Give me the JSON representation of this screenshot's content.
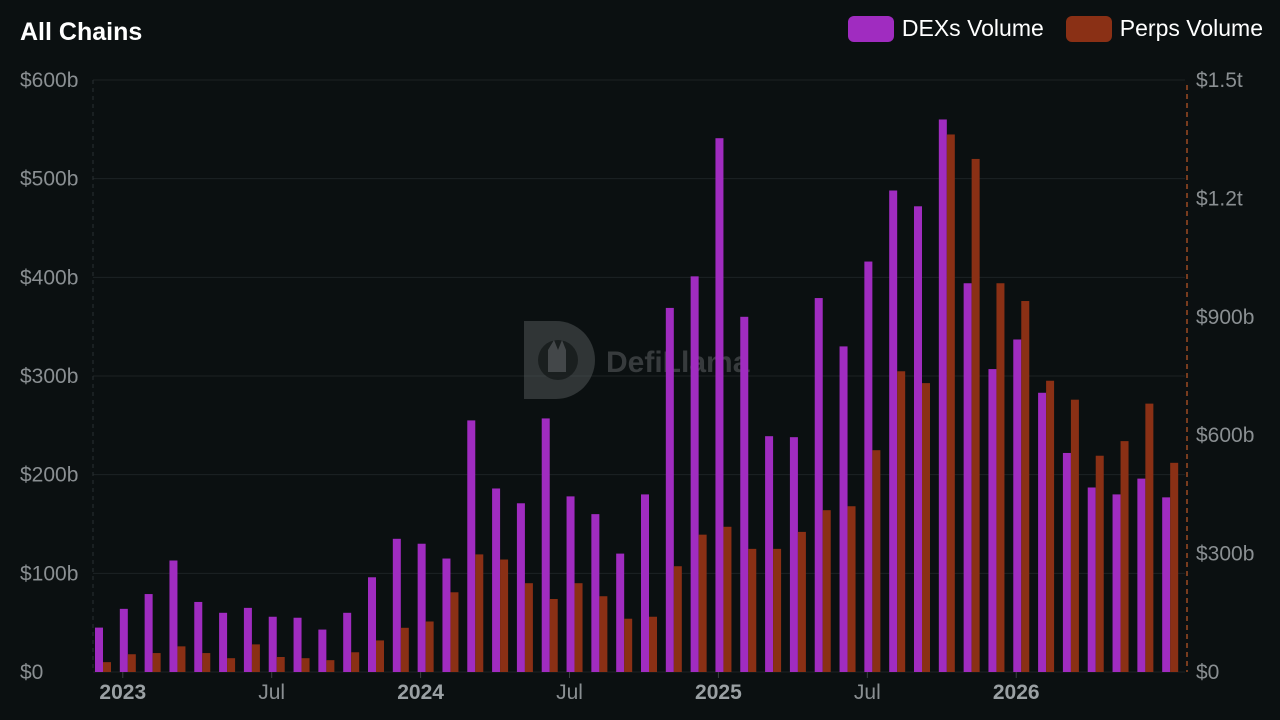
{
  "header": {
    "title": "All Chains"
  },
  "watermark": {
    "text": "DefiLlama"
  },
  "colors": {
    "background": "#0b1011",
    "dex": "#a02cc0",
    "perps": "#8a3015",
    "grid": "#1c2224",
    "axis_right": "#9c4a22"
  },
  "chart_data": {
    "type": "bar",
    "title": "All Chains",
    "series": [
      {
        "name": "DEXs Volume",
        "axis": "left",
        "color": "#a02cc0",
        "values": [
          45,
          64,
          79,
          113,
          71,
          60,
          65,
          56,
          55,
          43,
          60,
          96,
          135,
          130,
          115,
          255,
          186,
          171,
          257,
          178,
          160,
          120,
          180,
          369,
          401,
          541,
          360,
          239,
          238,
          379,
          330,
          416,
          488,
          472,
          560,
          394,
          307,
          337,
          283,
          222,
          187,
          180,
          196,
          177
        ]
      },
      {
        "name": "Perps Volume",
        "axis": "right",
        "color": "#8a3015",
        "values": [
          25,
          45,
          48,
          65,
          48,
          35,
          70,
          38,
          35,
          30,
          50,
          80,
          112,
          128,
          202,
          298,
          285,
          225,
          185,
          225,
          192,
          135,
          140,
          268,
          348,
          368,
          312,
          312,
          355,
          410,
          420,
          562,
          762,
          732,
          1362,
          1300,
          985,
          940,
          738,
          690,
          548,
          585,
          680,
          530
        ]
      }
    ],
    "x_ticks": [
      {
        "label": "2023",
        "index": 1.2,
        "bold": true
      },
      {
        "label": "Jul",
        "index": 7.2,
        "bold": false
      },
      {
        "label": "2024",
        "index": 13.2,
        "bold": true
      },
      {
        "label": "Jul",
        "index": 19.2,
        "bold": false
      },
      {
        "label": "2025",
        "index": 25.2,
        "bold": true
      },
      {
        "label": "Jul",
        "index": 31.2,
        "bold": false
      },
      {
        "label": "2026",
        "index": 37.2,
        "bold": true
      }
    ],
    "y_left": {
      "min": 0,
      "max": 600,
      "ticks": [
        0,
        100,
        200,
        300,
        400,
        500,
        600
      ],
      "tick_labels": [
        "$0",
        "$100b",
        "$200b",
        "$300b",
        "$400b",
        "$500b",
        "$600b"
      ]
    },
    "y_right": {
      "min": 0,
      "max": 1500,
      "ticks": [
        0,
        300,
        600,
        900,
        1200,
        1500
      ],
      "tick_labels": [
        "$0",
        "$300b",
        "$600b",
        "$900b",
        "$1.2t",
        "$1.5t"
      ]
    },
    "grid": true,
    "legend_position": "top-right"
  }
}
